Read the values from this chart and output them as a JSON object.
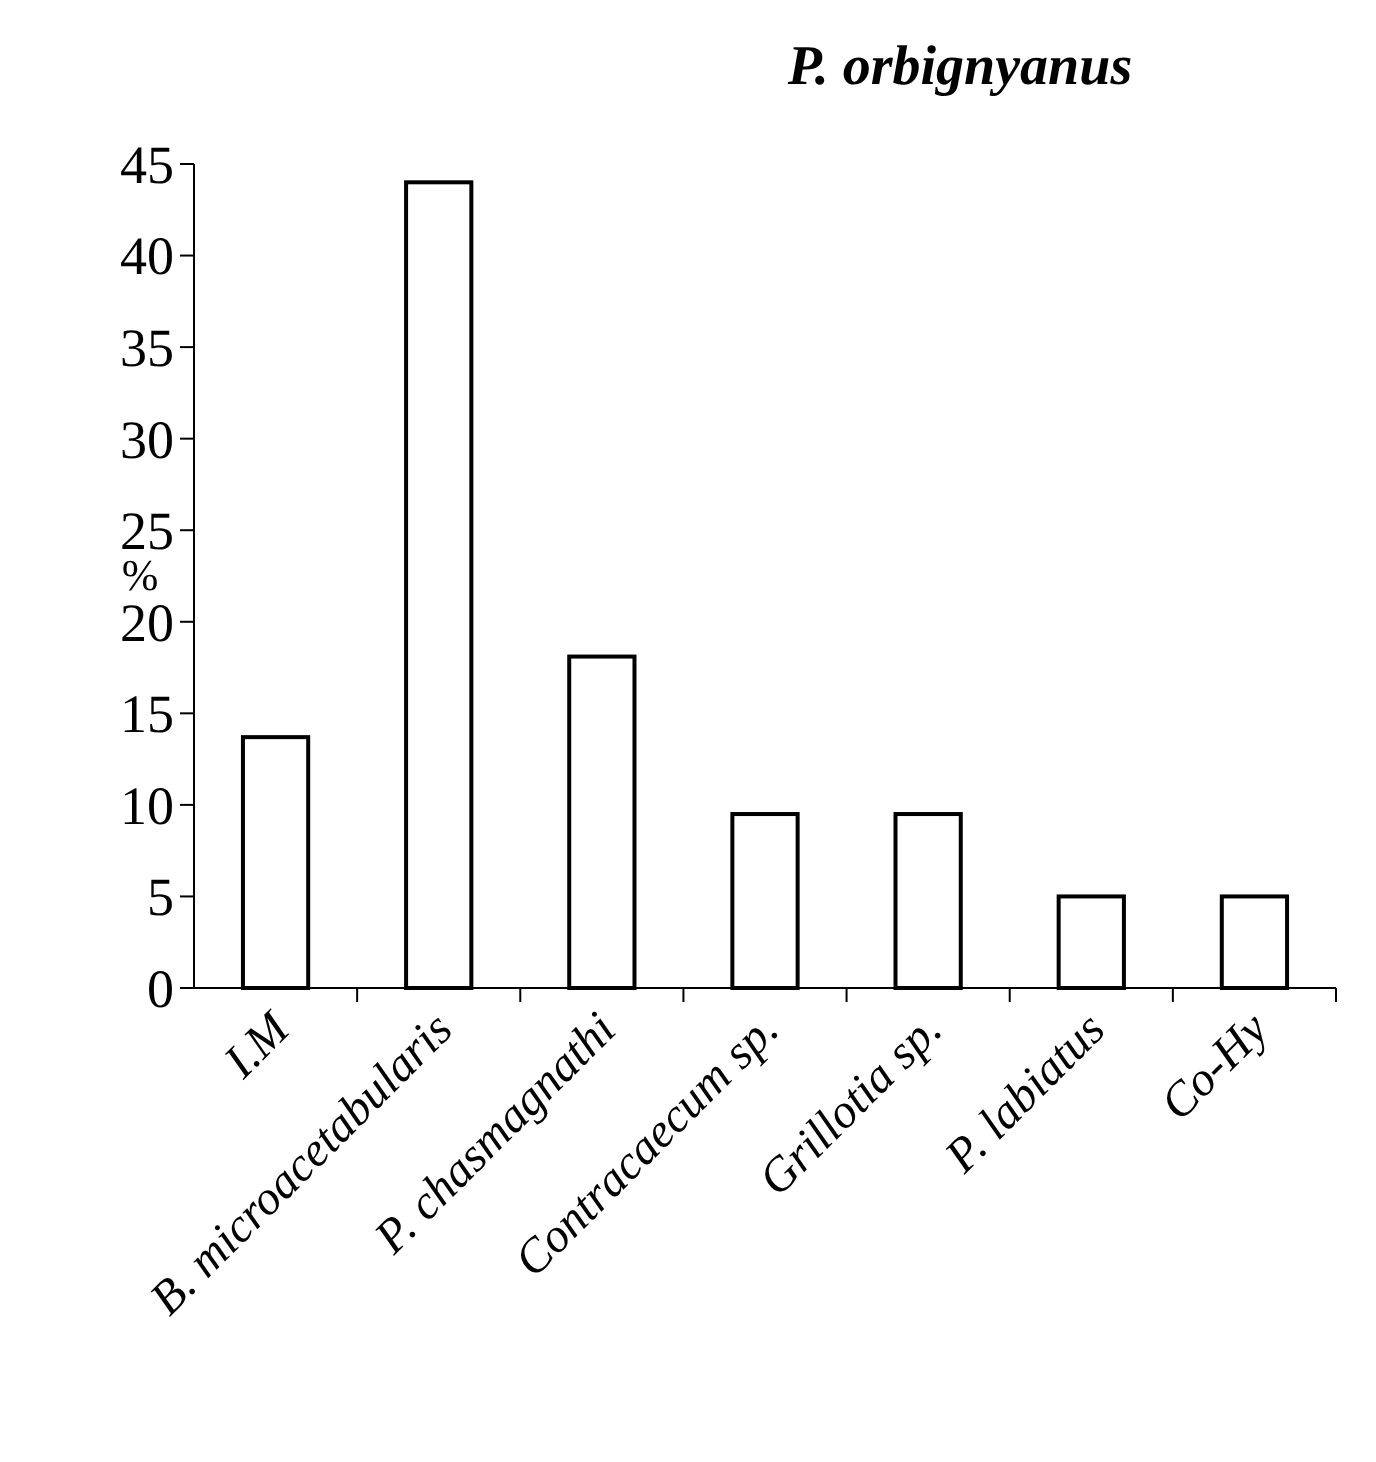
{
  "chart_data": {
    "type": "bar",
    "title": "P. orbignyanus",
    "ylabel": "%",
    "categories": [
      "I.M",
      "B. microacetabularis",
      "P. chasmagnathi",
      "Contracaecum sp.",
      "Grillotia sp.",
      "P. labiatus",
      "Co-Hy"
    ],
    "values": [
      13.7,
      44,
      18.1,
      9.5,
      9.5,
      5,
      5
    ],
    "colors": [
      "#ffffff",
      "#ffffff",
      "#ffffff",
      "#ffffff",
      "#ffffff",
      "#ffffff",
      "#ffffff"
    ],
    "ylim": [
      0,
      45
    ],
    "yticks": [
      0,
      5,
      10,
      15,
      20,
      25,
      30,
      35,
      40,
      45
    ]
  }
}
